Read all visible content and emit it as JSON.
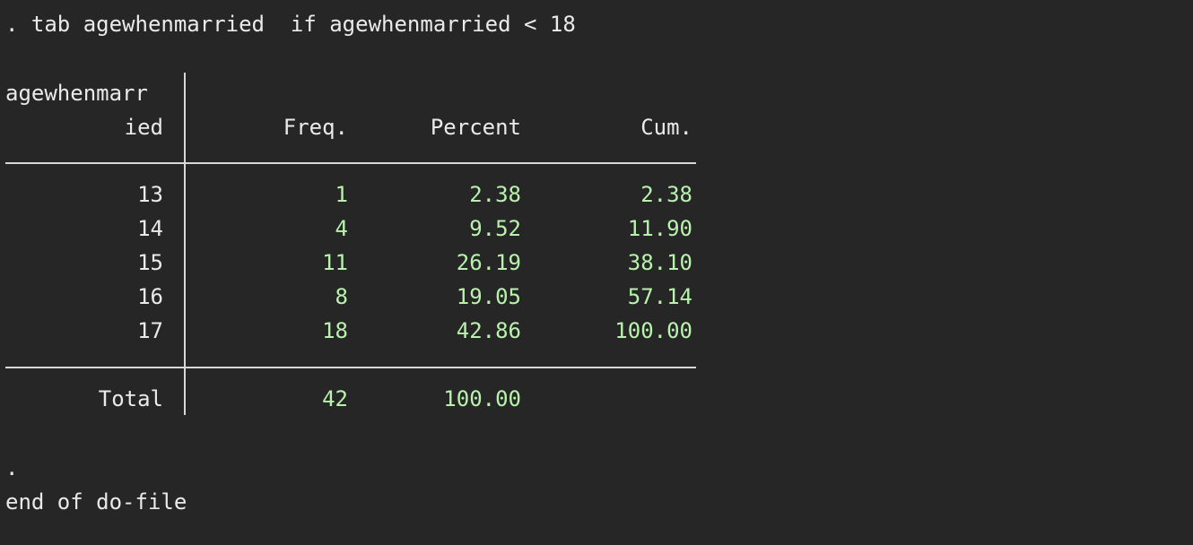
{
  "console": {
    "command": ". tab agewhenmarried  if agewhenmarried < 18",
    "prompt_dot": ".",
    "end_message": "end of do-file"
  },
  "table": {
    "var_header_line1": "agewhenmarr",
    "var_header_line2": "ied",
    "columns": [
      "Freq.",
      "Percent",
      "Cum."
    ],
    "rows": [
      {
        "label": "13",
        "freq": "1",
        "percent": "2.38",
        "cum": "2.38"
      },
      {
        "label": "14",
        "freq": "4",
        "percent": "9.52",
        "cum": "11.90"
      },
      {
        "label": "15",
        "freq": "11",
        "percent": "26.19",
        "cum": "38.10"
      },
      {
        "label": "16",
        "freq": "8",
        "percent": "19.05",
        "cum": "57.14"
      },
      {
        "label": "17",
        "freq": "18",
        "percent": "42.86",
        "cum": "100.00"
      }
    ],
    "total": {
      "label": "Total",
      "freq": "42",
      "percent": "100.00"
    }
  },
  "colors": {
    "background": "#262626",
    "text": "#eaeaea",
    "result_values": "#b8f2ad"
  }
}
